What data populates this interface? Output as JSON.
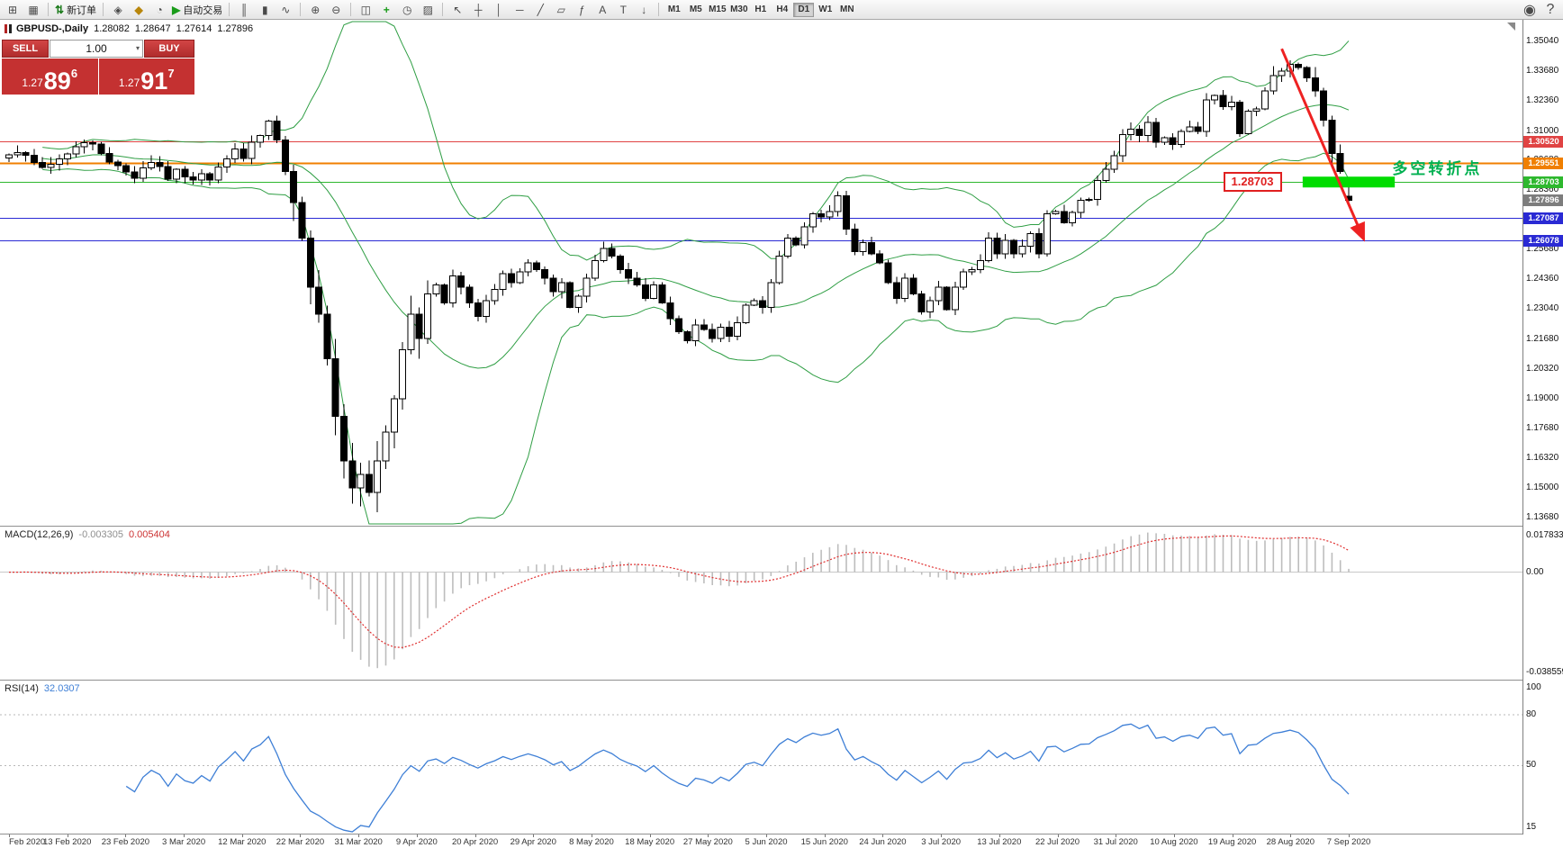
{
  "toolbar": {
    "groups": [
      {
        "name": "charts",
        "items": [
          {
            "name": "new-chart-icon",
            "glyph": "⊞"
          },
          {
            "name": "profiles-icon",
            "glyph": "▦"
          }
        ]
      },
      {
        "name": "trade",
        "items": [
          {
            "name": "new-order-button",
            "glyph": "⇅",
            "glyph_color": "#1a7a1a",
            "label": "新订单"
          }
        ]
      },
      {
        "name": "apps",
        "items": [
          {
            "name": "metaeditor-icon",
            "glyph": "◈"
          },
          {
            "name": "market-icon",
            "glyph": "◆",
            "glyph_color": "#b8860b"
          },
          {
            "name": "signals-icon",
            "glyph": "◔"
          },
          {
            "name": "autotrading-button",
            "glyph": "▶",
            "glyph_color": "#1a9c1a",
            "label": "自动交易"
          }
        ]
      },
      {
        "name": "chart-modes",
        "items": [
          {
            "name": "bar-chart-icon",
            "glyph": "║"
          },
          {
            "name": "candlestick-chart-icon",
            "glyph": "▮"
          },
          {
            "name": "line-chart-icon",
            "glyph": "∿"
          }
        ]
      },
      {
        "name": "zoom",
        "items": [
          {
            "name": "zoom-in-icon",
            "glyph": "⊕"
          },
          {
            "name": "zoom-out-icon",
            "glyph": "⊖"
          }
        ]
      },
      {
        "name": "windows",
        "items": [
          {
            "name": "tile-windows-icon",
            "glyph": "◫"
          },
          {
            "name": "indicators-icon",
            "glyph": "+",
            "glyph_color": "#1a9c1a"
          },
          {
            "name": "periods-icon",
            "glyph": "◷"
          },
          {
            "name": "templates-icon",
            "glyph": "▨"
          }
        ]
      },
      {
        "name": "objects",
        "items": [
          {
            "name": "cursor-icon",
            "glyph": "↖"
          },
          {
            "name": "crosshair-icon",
            "glyph": "┼"
          },
          {
            "name": "vertical-line-icon",
            "glyph": "│"
          },
          {
            "name": "horizontal-line-icon",
            "glyph": "─"
          },
          {
            "name": "trendline-icon",
            "glyph": "╱"
          },
          {
            "name": "channel-icon",
            "glyph": "▱"
          },
          {
            "name": "fibonacci-icon",
            "glyph": "ƒ"
          },
          {
            "name": "text-icon",
            "glyph": "A"
          },
          {
            "name": "label-icon",
            "glyph": "T"
          },
          {
            "name": "arrows-icon",
            "glyph": "↓"
          }
        ]
      }
    ],
    "timeframes": [
      "M1",
      "M5",
      "M15",
      "M30",
      "H1",
      "H4",
      "D1",
      "W1",
      "MN"
    ],
    "active_timeframe": "D1",
    "right_icons": [
      {
        "name": "search-icon",
        "glyph": "◉"
      },
      {
        "name": "help-icon",
        "glyph": "?"
      }
    ]
  },
  "chart": {
    "title": "GBPUSD-,Daily",
    "open": "1.28082",
    "high": "1.28647",
    "low": "1.27614",
    "close": "1.27896"
  },
  "one_click": {
    "sell_label": "SELL",
    "buy_label": "BUY",
    "volume": "1.00",
    "sell_price": {
      "prefix": "1.27",
      "big": "89",
      "sup": "6"
    },
    "buy_price": {
      "prefix": "1.27",
      "big": "91",
      "sup": "7"
    }
  },
  "panels": {
    "macd": {
      "name": "MACD(12,26,9)",
      "value_main": "-0.003305",
      "value_signal": "0.005404",
      "axis": [
        "0.017833",
        "0.00",
        "-0.038559"
      ]
    },
    "rsi": {
      "name": "RSI(14)",
      "value": "32.0307",
      "axis": [
        "100",
        "80",
        "50",
        "15"
      ]
    }
  },
  "chart_data": {
    "type": "candlestick",
    "symbol": "GBPUSD",
    "timeframe": "Daily",
    "closes": [
      1.2995,
      1.3005,
      1.2992,
      1.296,
      1.2938,
      1.2952,
      1.2975,
      1.2998,
      1.303,
      1.3048,
      1.3042,
      1.3,
      1.2962,
      1.2945,
      1.2918,
      1.289,
      1.2935,
      1.296,
      1.2942,
      1.2885,
      1.293,
      1.2895,
      1.2882,
      1.291,
      1.2882,
      1.294,
      1.2975,
      1.302,
      1.2978,
      1.305,
      1.308,
      1.3145,
      1.306,
      1.292,
      1.278,
      1.262,
      1.24,
      1.228,
      1.208,
      1.182,
      1.162,
      1.15,
      1.156,
      1.148,
      1.162,
      1.175,
      1.19,
      1.212,
      1.228,
      1.217,
      1.237,
      1.241,
      1.233,
      1.245,
      1.24,
      1.233,
      1.227,
      1.234,
      1.239,
      1.246,
      1.242,
      1.247,
      1.251,
      1.248,
      1.244,
      1.238,
      1.242,
      1.231,
      1.236,
      1.244,
      1.252,
      1.2575,
      1.254,
      1.248,
      1.244,
      1.241,
      1.235,
      1.241,
      1.233,
      1.226,
      1.22,
      1.216,
      1.223,
      1.221,
      1.217,
      1.222,
      1.218,
      1.224,
      1.232,
      1.234,
      1.231,
      1.242,
      1.254,
      1.262,
      1.259,
      1.267,
      1.273,
      1.2715,
      1.274,
      1.281,
      1.266,
      1.256,
      1.26,
      1.255,
      1.251,
      1.242,
      1.235,
      1.244,
      1.237,
      1.229,
      1.234,
      1.24,
      1.23,
      1.24,
      1.247,
      1.248,
      1.252,
      1.262,
      1.255,
      1.261,
      1.255,
      1.2585,
      1.264,
      1.255,
      1.273,
      1.274,
      1.269,
      1.2735,
      1.279,
      1.2795,
      1.288,
      1.293,
      1.299,
      1.3085,
      1.311,
      1.308,
      1.314,
      1.305,
      1.307,
      1.304,
      1.31,
      1.312,
      1.31,
      1.324,
      1.326,
      1.321,
      1.323,
      1.309,
      1.319,
      1.32,
      1.328,
      1.335,
      1.337,
      1.34,
      1.3385,
      1.334,
      1.328,
      1.315,
      1.3,
      1.292,
      1.27896
    ],
    "last_ohlc": {
      "open": 1.28082,
      "high": 1.28647,
      "low": 1.27614,
      "close": 1.27896
    },
    "current_price": 1.27896,
    "price_range": {
      "max": 1.36,
      "min": 1.133
    },
    "rsi_range": {
      "max": 100,
      "min": 10
    },
    "rsi_levels": [
      80,
      50
    ],
    "indicators": {
      "bollinger": {
        "period": 20,
        "deviation": 2
      },
      "macd": {
        "fast": 12,
        "slow": 26,
        "signal": 9
      },
      "rsi": {
        "period": 14
      }
    },
    "y_ticks": [
      1.3504,
      1.3368,
      1.3236,
      1.31,
      1.2968,
      1.2836,
      1.2704,
      1.2568,
      1.2436,
      1.2304,
      1.2168,
      1.2032,
      1.19,
      1.1768,
      1.1632,
      1.15,
      1.1368
    ],
    "hlines": [
      {
        "price": 1.3052,
        "color": "#e04343",
        "width": 1
      },
      {
        "price": 1.29551,
        "color": "#f07f00",
        "width": 2
      },
      {
        "price": 1.28703,
        "color": "#2eb82e",
        "width": 1
      },
      {
        "price": 1.27087,
        "color": "#2a2ad4",
        "width": 1
      },
      {
        "price": 1.26078,
        "color": "#2a2ad4",
        "width": 1
      }
    ],
    "x_labels": [
      "Feb 2020",
      "13 Feb 2020",
      "23 Feb 2020",
      "3 Mar 2020",
      "12 Mar 2020",
      "22 Mar 2020",
      "31 Mar 2020",
      "9 Apr 2020",
      "20 Apr 2020",
      "29 Apr 2020",
      "8 May 2020",
      "18 May 2020",
      "27 May 2020",
      "5 Jun 2020",
      "15 Jun 2020",
      "24 Jun 2020",
      "3 Jul 2020",
      "13 Jul 2020",
      "22 Jul 2020",
      "31 Jul 2020",
      "10 Aug 2020",
      "19 Aug 2020",
      "28 Aug 2020",
      "7 Sep 2020"
    ],
    "annotations": {
      "support_label": {
        "text": "1.28703",
        "index": 145,
        "price": 1.2872
      },
      "note": {
        "text": "多空转折点",
        "index": 165.2,
        "price": 1.2952
      },
      "trend_arrow": {
        "from_index": 152,
        "from_price": 1.347,
        "to_index": 161.8,
        "to_price": 1.2615
      },
      "highlight_rect": {
        "from_index": 154.5,
        "to_index": 165.5,
        "price": 1.2872,
        "half_height": 6
      }
    },
    "colors": {
      "up": "#ffffff",
      "down": "#000000",
      "outline": "#000000",
      "bands": "#2f9e44",
      "highlight": "#00dc00",
      "arrow": "#ee2222",
      "macd_hist": "#bdbdbd",
      "macd_signal": "#e03030",
      "rsi": "#3e7fd6",
      "current_badge": "#7d7d7d",
      "note": "#00b050",
      "label_red": "#e02020"
    }
  }
}
